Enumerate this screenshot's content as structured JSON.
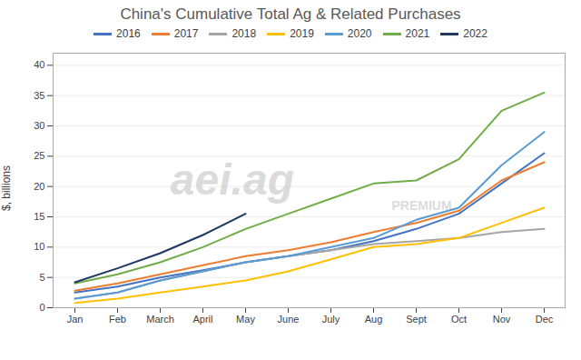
{
  "chart_data": {
    "type": "line",
    "title": "China's Cumulative Total Ag & Related Purchases",
    "ylabel": "$, billions",
    "categories": [
      "Jan",
      "Feb",
      "March",
      "April",
      "May",
      "June",
      "July",
      "Aug",
      "Sept",
      "Oct",
      "Nov",
      "Dec"
    ],
    "series": [
      {
        "name": "2016",
        "color": "#4472C4",
        "values": [
          2.5,
          3.5,
          5.0,
          6.2,
          7.5,
          8.5,
          9.5,
          11.0,
          13.0,
          15.5,
          20.5,
          25.5
        ]
      },
      {
        "name": "2017",
        "color": "#ED7D31",
        "values": [
          2.8,
          4.0,
          5.5,
          7.0,
          8.5,
          9.5,
          10.8,
          12.5,
          14.0,
          16.0,
          21.0,
          24.0
        ]
      },
      {
        "name": "2018",
        "color": "#A5A5A5",
        "values": [
          1.5,
          2.5,
          4.5,
          6.0,
          7.5,
          8.5,
          9.5,
          10.5,
          11.0,
          11.5,
          12.5,
          13.0
        ]
      },
      {
        "name": "2019",
        "color": "#FFC000",
        "values": [
          0.8,
          1.5,
          2.5,
          3.5,
          4.5,
          6.0,
          8.0,
          10.0,
          10.5,
          11.5,
          14.0,
          16.5
        ]
      },
      {
        "name": "2020",
        "color": "#5B9BD5",
        "values": [
          1.5,
          2.5,
          4.5,
          6.0,
          7.5,
          8.5,
          10.0,
          11.5,
          14.5,
          16.5,
          23.5,
          29.0
        ]
      },
      {
        "name": "2021",
        "color": "#70AD47",
        "values": [
          4.0,
          5.5,
          7.5,
          10.0,
          13.0,
          15.5,
          18.0,
          20.5,
          21.0,
          24.5,
          32.5,
          35.5
        ]
      },
      {
        "name": "2022",
        "color": "#1F3864",
        "values": [
          4.2,
          6.5,
          9.0,
          12.0,
          15.5,
          null,
          null,
          null,
          null,
          null,
          null,
          null
        ]
      }
    ],
    "ylim": [
      0,
      42
    ],
    "yticks": [
      0,
      5,
      10,
      15,
      20,
      25,
      30,
      35,
      40
    ],
    "grid": true,
    "legend": "top",
    "annotations": [
      "aei.ag",
      "PREMIUM"
    ]
  }
}
